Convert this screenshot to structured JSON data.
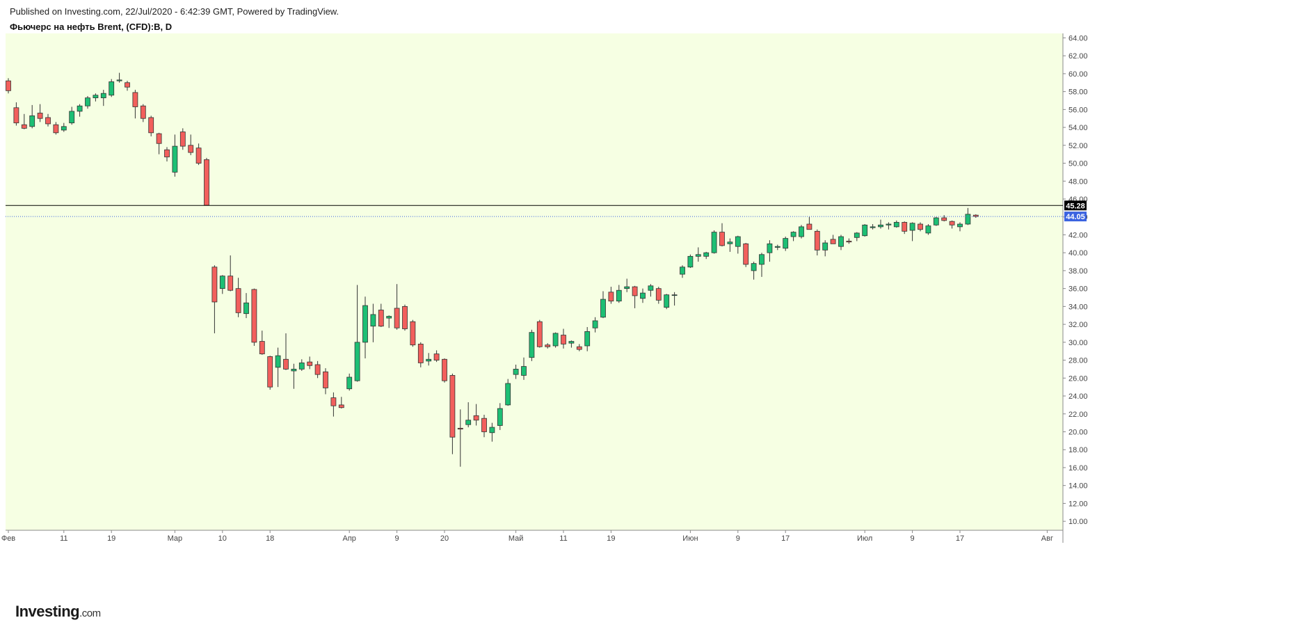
{
  "header": {
    "published": "Published on Investing.com, 22/Jul/2020 - 6:42:39 GMT, Powered by TradingView.",
    "title": "Фьючерс на нефть Brent, (CFD):B, D"
  },
  "logo": {
    "main": "Investing",
    "suffix": ".com"
  },
  "colors": {
    "background": "#f6ffe3",
    "up": "#1dbf74",
    "down": "#f25f5c",
    "wick": "#333333",
    "last_price_line": "#000000",
    "current_price_line": "#3b63e0"
  },
  "chart_data": {
    "type": "candlestick",
    "ylim": [
      9.0,
      64.5
    ],
    "y_ticks": [
      "10.00",
      "12.00",
      "14.00",
      "16.00",
      "18.00",
      "20.00",
      "22.00",
      "24.00",
      "26.00",
      "28.00",
      "30.00",
      "32.00",
      "34.00",
      "36.00",
      "38.00",
      "40.00",
      "42.00",
      "44.00",
      "46.00",
      "48.00",
      "50.00",
      "52.00",
      "54.00",
      "56.00",
      "58.00",
      "60.00",
      "62.00",
      "64.00"
    ],
    "x_ticks": [
      {
        "label": "Фев",
        "index": 0
      },
      {
        "label": "11",
        "index": 7
      },
      {
        "label": "19",
        "index": 13
      },
      {
        "label": "Мар",
        "index": 21
      },
      {
        "label": "10",
        "index": 27
      },
      {
        "label": "18",
        "index": 33
      },
      {
        "label": "Апр",
        "index": 43
      },
      {
        "label": "9",
        "index": 49
      },
      {
        "label": "20",
        "index": 55
      },
      {
        "label": "Май",
        "index": 64
      },
      {
        "label": "11",
        "index": 70
      },
      {
        "label": "19",
        "index": 76
      },
      {
        "label": "Июн",
        "index": 86
      },
      {
        "label": "9",
        "index": 92
      },
      {
        "label": "17",
        "index": 98
      },
      {
        "label": "Июл",
        "index": 108
      },
      {
        "label": "9",
        "index": 114
      },
      {
        "label": "17",
        "index": 120
      },
      {
        "label": "Авг",
        "index": 131
      }
    ],
    "last_price": "45.28",
    "last_price_value": 45.28,
    "current_price": "44.05",
    "current_price_value": 44.05,
    "candles": [
      {
        "i": 0,
        "o": 59.2,
        "h": 59.5,
        "l": 57.8,
        "c": 58.1
      },
      {
        "i": 1,
        "o": 56.2,
        "h": 56.8,
        "l": 54.2,
        "c": 54.5
      },
      {
        "i": 2,
        "o": 54.3,
        "h": 55.5,
        "l": 53.8,
        "c": 53.9
      },
      {
        "i": 3,
        "o": 54.1,
        "h": 56.5,
        "l": 53.9,
        "c": 55.3
      },
      {
        "i": 4,
        "o": 55.6,
        "h": 56.6,
        "l": 54.6,
        "c": 55.0
      },
      {
        "i": 5,
        "o": 55.1,
        "h": 55.5,
        "l": 54.1,
        "c": 54.4
      },
      {
        "i": 6,
        "o": 54.3,
        "h": 54.6,
        "l": 53.2,
        "c": 53.4
      },
      {
        "i": 7,
        "o": 53.7,
        "h": 54.5,
        "l": 53.5,
        "c": 54.1
      },
      {
        "i": 8,
        "o": 54.5,
        "h": 56.3,
        "l": 54.3,
        "c": 55.8
      },
      {
        "i": 9,
        "o": 55.8,
        "h": 56.6,
        "l": 55.2,
        "c": 56.4
      },
      {
        "i": 10,
        "o": 56.4,
        "h": 57.5,
        "l": 56.1,
        "c": 57.3
      },
      {
        "i": 11,
        "o": 57.3,
        "h": 57.8,
        "l": 56.9,
        "c": 57.6
      },
      {
        "i": 12,
        "o": 57.3,
        "h": 58.2,
        "l": 56.4,
        "c": 57.8
      },
      {
        "i": 13,
        "o": 57.6,
        "h": 59.4,
        "l": 57.4,
        "c": 59.1
      },
      {
        "i": 14,
        "o": 59.2,
        "h": 60.1,
        "l": 59.0,
        "c": 59.3
      },
      {
        "i": 15,
        "o": 59.0,
        "h": 59.2,
        "l": 58.1,
        "c": 58.5
      },
      {
        "i": 16,
        "o": 57.9,
        "h": 58.2,
        "l": 55.0,
        "c": 56.3
      },
      {
        "i": 17,
        "o": 56.4,
        "h": 56.6,
        "l": 54.6,
        "c": 55.0
      },
      {
        "i": 18,
        "o": 55.1,
        "h": 55.3,
        "l": 53.0,
        "c": 53.4
      },
      {
        "i": 19,
        "o": 53.3,
        "h": 53.4,
        "l": 51.0,
        "c": 52.2
      },
      {
        "i": 20,
        "o": 51.5,
        "h": 51.8,
        "l": 50.2,
        "c": 50.7
      },
      {
        "i": 21,
        "o": 49.0,
        "h": 53.2,
        "l": 48.5,
        "c": 51.9
      },
      {
        "i": 22,
        "o": 53.5,
        "h": 53.9,
        "l": 51.5,
        "c": 51.9
      },
      {
        "i": 23,
        "o": 52.0,
        "h": 53.2,
        "l": 50.9,
        "c": 51.2
      },
      {
        "i": 24,
        "o": 51.7,
        "h": 52.2,
        "l": 49.8,
        "c": 50.0
      },
      {
        "i": 25,
        "o": 50.4,
        "h": 50.6,
        "l": 45.3,
        "c": 45.3
      },
      {
        "i": 26,
        "o": 38.4,
        "h": 38.6,
        "l": 31.0,
        "c": 34.5
      },
      {
        "i": 27,
        "o": 36.0,
        "h": 37.5,
        "l": 35.4,
        "c": 37.4
      },
      {
        "i": 28,
        "o": 37.4,
        "h": 39.7,
        "l": 35.7,
        "c": 35.8
      },
      {
        "i": 29,
        "o": 36.0,
        "h": 37.2,
        "l": 32.8,
        "c": 33.3
      },
      {
        "i": 30,
        "o": 33.2,
        "h": 35.5,
        "l": 32.7,
        "c": 34.4
      },
      {
        "i": 31,
        "o": 35.9,
        "h": 36.0,
        "l": 29.6,
        "c": 30.0
      },
      {
        "i": 32,
        "o": 30.1,
        "h": 31.3,
        "l": 28.6,
        "c": 28.7
      },
      {
        "i": 33,
        "o": 28.4,
        "h": 28.5,
        "l": 24.7,
        "c": 25.0
      },
      {
        "i": 34,
        "o": 27.2,
        "h": 29.4,
        "l": 25.0,
        "c": 28.5
      },
      {
        "i": 35,
        "o": 28.1,
        "h": 31.0,
        "l": 26.9,
        "c": 27.0
      },
      {
        "i": 36,
        "o": 26.8,
        "h": 27.6,
        "l": 24.8,
        "c": 27.0
      },
      {
        "i": 37,
        "o": 27.0,
        "h": 28.1,
        "l": 26.8,
        "c": 27.7
      },
      {
        "i": 38,
        "o": 27.8,
        "h": 28.4,
        "l": 27.0,
        "c": 27.4
      },
      {
        "i": 39,
        "o": 27.5,
        "h": 27.9,
        "l": 26.0,
        "c": 26.4
      },
      {
        "i": 40,
        "o": 26.7,
        "h": 27.1,
        "l": 24.2,
        "c": 24.9
      },
      {
        "i": 41,
        "o": 23.8,
        "h": 24.4,
        "l": 21.7,
        "c": 22.9
      },
      {
        "i": 42,
        "o": 23.0,
        "h": 23.9,
        "l": 22.6,
        "c": 22.7
      },
      {
        "i": 43,
        "o": 24.8,
        "h": 26.5,
        "l": 24.6,
        "c": 26.1
      },
      {
        "i": 44,
        "o": 25.7,
        "h": 36.4,
        "l": 25.6,
        "c": 30.0
      },
      {
        "i": 45,
        "o": 30.0,
        "h": 35.1,
        "l": 28.2,
        "c": 34.1
      },
      {
        "i": 46,
        "o": 31.8,
        "h": 34.3,
        "l": 30.0,
        "c": 33.1
      },
      {
        "i": 47,
        "o": 33.6,
        "h": 34.3,
        "l": 31.7,
        "c": 31.8
      },
      {
        "i": 48,
        "o": 32.7,
        "h": 33.0,
        "l": 31.6,
        "c": 32.9
      },
      {
        "i": 49,
        "o": 33.8,
        "h": 36.5,
        "l": 31.4,
        "c": 31.6
      },
      {
        "i": 50,
        "o": 34.0,
        "h": 34.2,
        "l": 31.3,
        "c": 31.5
      },
      {
        "i": 51,
        "o": 32.3,
        "h": 32.5,
        "l": 29.5,
        "c": 29.7
      },
      {
        "i": 52,
        "o": 29.8,
        "h": 30.0,
        "l": 27.2,
        "c": 27.7
      },
      {
        "i": 53,
        "o": 27.9,
        "h": 28.8,
        "l": 27.4,
        "c": 28.1
      },
      {
        "i": 54,
        "o": 28.7,
        "h": 29.1,
        "l": 27.8,
        "c": 28.0
      },
      {
        "i": 55,
        "o": 28.1,
        "h": 28.2,
        "l": 25.5,
        "c": 25.7
      },
      {
        "i": 56,
        "o": 26.3,
        "h": 26.5,
        "l": 17.5,
        "c": 19.4
      },
      {
        "i": 57,
        "o": 20.4,
        "h": 22.5,
        "l": 16.1,
        "c": 20.3
      },
      {
        "i": 58,
        "o": 20.8,
        "h": 23.3,
        "l": 20.5,
        "c": 21.3
      },
      {
        "i": 59,
        "o": 21.8,
        "h": 23.1,
        "l": 20.7,
        "c": 21.3
      },
      {
        "i": 60,
        "o": 21.5,
        "h": 21.9,
        "l": 19.4,
        "c": 20.0
      },
      {
        "i": 61,
        "o": 19.9,
        "h": 21.0,
        "l": 18.9,
        "c": 20.5
      },
      {
        "i": 62,
        "o": 20.7,
        "h": 23.2,
        "l": 20.2,
        "c": 22.6
      },
      {
        "i": 63,
        "o": 23.0,
        "h": 25.9,
        "l": 22.9,
        "c": 25.4
      },
      {
        "i": 64,
        "o": 26.4,
        "h": 27.5,
        "l": 25.9,
        "c": 27.0
      },
      {
        "i": 65,
        "o": 26.3,
        "h": 28.3,
        "l": 25.8,
        "c": 27.3
      },
      {
        "i": 66,
        "o": 28.3,
        "h": 31.4,
        "l": 27.9,
        "c": 31.1
      },
      {
        "i": 67,
        "o": 32.3,
        "h": 32.5,
        "l": 29.4,
        "c": 29.5
      },
      {
        "i": 68,
        "o": 29.7,
        "h": 29.9,
        "l": 29.3,
        "c": 29.5
      },
      {
        "i": 69,
        "o": 29.6,
        "h": 31.1,
        "l": 29.4,
        "c": 31.0
      },
      {
        "i": 70,
        "o": 30.8,
        "h": 31.5,
        "l": 29.3,
        "c": 29.8
      },
      {
        "i": 71,
        "o": 29.9,
        "h": 30.2,
        "l": 29.4,
        "c": 30.1
      },
      {
        "i": 72,
        "o": 29.5,
        "h": 29.8,
        "l": 29.0,
        "c": 29.2
      },
      {
        "i": 73,
        "o": 29.6,
        "h": 31.7,
        "l": 29.0,
        "c": 31.2
      },
      {
        "i": 74,
        "o": 31.6,
        "h": 32.8,
        "l": 31.1,
        "c": 32.4
      },
      {
        "i": 75,
        "o": 32.8,
        "h": 35.7,
        "l": 32.7,
        "c": 34.8
      },
      {
        "i": 76,
        "o": 35.6,
        "h": 36.2,
        "l": 34.3,
        "c": 34.6
      },
      {
        "i": 77,
        "o": 34.6,
        "h": 36.4,
        "l": 34.4,
        "c": 35.8
      },
      {
        "i": 78,
        "o": 36.0,
        "h": 37.1,
        "l": 35.6,
        "c": 36.2
      },
      {
        "i": 79,
        "o": 36.2,
        "h": 36.3,
        "l": 33.8,
        "c": 35.2
      },
      {
        "i": 80,
        "o": 34.9,
        "h": 36.0,
        "l": 34.4,
        "c": 35.5
      },
      {
        "i": 81,
        "o": 35.8,
        "h": 36.5,
        "l": 35.1,
        "c": 36.3
      },
      {
        "i": 82,
        "o": 36.0,
        "h": 36.2,
        "l": 34.3,
        "c": 34.7
      },
      {
        "i": 83,
        "o": 33.9,
        "h": 35.4,
        "l": 33.7,
        "c": 35.3
      },
      {
        "i": 84,
        "o": 35.3,
        "h": 35.6,
        "l": 34.1,
        "c": 35.3
      },
      {
        "i": 85,
        "o": 37.6,
        "h": 38.6,
        "l": 37.2,
        "c": 38.4
      },
      {
        "i": 86,
        "o": 38.4,
        "h": 39.8,
        "l": 38.3,
        "c": 39.6
      },
      {
        "i": 87,
        "o": 39.6,
        "h": 40.6,
        "l": 39.0,
        "c": 39.8
      },
      {
        "i": 88,
        "o": 39.6,
        "h": 40.1,
        "l": 39.3,
        "c": 40.0
      },
      {
        "i": 89,
        "o": 40.0,
        "h": 42.5,
        "l": 39.9,
        "c": 42.3
      },
      {
        "i": 90,
        "o": 42.3,
        "h": 43.3,
        "l": 40.7,
        "c": 40.8
      },
      {
        "i": 91,
        "o": 41.0,
        "h": 41.6,
        "l": 40.1,
        "c": 41.2
      },
      {
        "i": 92,
        "o": 40.7,
        "h": 41.9,
        "l": 39.9,
        "c": 41.8
      },
      {
        "i": 93,
        "o": 41.0,
        "h": 41.1,
        "l": 38.4,
        "c": 38.7
      },
      {
        "i": 94,
        "o": 38.0,
        "h": 39.0,
        "l": 37.0,
        "c": 38.8
      },
      {
        "i": 95,
        "o": 38.7,
        "h": 40.0,
        "l": 37.3,
        "c": 39.8
      },
      {
        "i": 96,
        "o": 40.0,
        "h": 41.4,
        "l": 39.0,
        "c": 41.0
      },
      {
        "i": 97,
        "o": 40.6,
        "h": 40.9,
        "l": 40.3,
        "c": 40.7
      },
      {
        "i": 98,
        "o": 40.5,
        "h": 41.8,
        "l": 40.2,
        "c": 41.6
      },
      {
        "i": 99,
        "o": 41.8,
        "h": 42.4,
        "l": 41.3,
        "c": 42.3
      },
      {
        "i": 100,
        "o": 41.8,
        "h": 43.1,
        "l": 41.6,
        "c": 42.9
      },
      {
        "i": 101,
        "o": 43.2,
        "h": 44.0,
        "l": 42.6,
        "c": 42.6
      },
      {
        "i": 102,
        "o": 42.4,
        "h": 42.6,
        "l": 39.7,
        "c": 40.3
      },
      {
        "i": 103,
        "o": 40.3,
        "h": 41.4,
        "l": 39.6,
        "c": 41.1
      },
      {
        "i": 104,
        "o": 41.5,
        "h": 42.0,
        "l": 41.0,
        "c": 41.0
      },
      {
        "i": 105,
        "o": 40.7,
        "h": 42.0,
        "l": 40.3,
        "c": 41.8
      },
      {
        "i": 106,
        "o": 41.3,
        "h": 41.6,
        "l": 41.0,
        "c": 41.2
      },
      {
        "i": 107,
        "o": 41.7,
        "h": 42.3,
        "l": 41.3,
        "c": 42.2
      },
      {
        "i": 108,
        "o": 41.9,
        "h": 43.2,
        "l": 41.8,
        "c": 43.1
      },
      {
        "i": 109,
        "o": 42.8,
        "h": 43.2,
        "l": 42.6,
        "c": 42.9
      },
      {
        "i": 110,
        "o": 42.9,
        "h": 43.7,
        "l": 42.7,
        "c": 43.1
      },
      {
        "i": 111,
        "o": 43.1,
        "h": 43.4,
        "l": 42.6,
        "c": 43.2
      },
      {
        "i": 112,
        "o": 42.9,
        "h": 43.6,
        "l": 42.8,
        "c": 43.4
      },
      {
        "i": 113,
        "o": 43.4,
        "h": 43.5,
        "l": 42.1,
        "c": 42.4
      },
      {
        "i": 114,
        "o": 42.5,
        "h": 43.4,
        "l": 41.3,
        "c": 43.3
      },
      {
        "i": 115,
        "o": 43.2,
        "h": 43.4,
        "l": 42.4,
        "c": 42.6
      },
      {
        "i": 116,
        "o": 42.2,
        "h": 43.2,
        "l": 42.0,
        "c": 43.0
      },
      {
        "i": 117,
        "o": 43.1,
        "h": 44.0,
        "l": 43.0,
        "c": 43.9
      },
      {
        "i": 118,
        "o": 43.9,
        "h": 44.2,
        "l": 43.5,
        "c": 43.6
      },
      {
        "i": 119,
        "o": 43.5,
        "h": 43.6,
        "l": 42.7,
        "c": 43.1
      },
      {
        "i": 120,
        "o": 42.9,
        "h": 43.4,
        "l": 42.4,
        "c": 43.2
      },
      {
        "i": 121,
        "o": 43.2,
        "h": 45.0,
        "l": 43.1,
        "c": 44.3
      },
      {
        "i": 122,
        "o": 44.2,
        "h": 44.3,
        "l": 43.9,
        "c": 44.05
      }
    ]
  }
}
